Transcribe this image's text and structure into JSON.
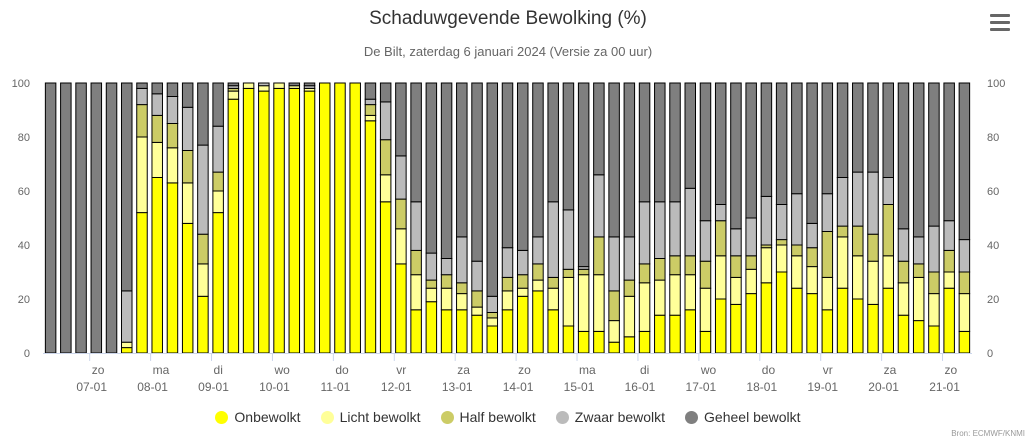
{
  "chart": {
    "title": "Schaduwgevende Bewolking (%)",
    "subtitle": "De Bilt, zaterdag 6 januari 2024 (Versie za 00 uur)",
    "credits": "Bron: ECMWF/KNMI"
  },
  "chart_data": {
    "type": "bar",
    "stacked": true,
    "ylim": [
      0,
      100
    ],
    "yticks": [
      0,
      20,
      40,
      60,
      80,
      100
    ],
    "grid": false,
    "legend_position": "bottom",
    "xaxis_day_labels": [
      {
        "day": "zo",
        "date": "07-01",
        "index": 3
      },
      {
        "day": "ma",
        "date": "08-01",
        "index": 7
      },
      {
        "day": "di",
        "date": "09-01",
        "index": 11
      },
      {
        "day": "wo",
        "date": "10-01",
        "index": 15
      },
      {
        "day": "do",
        "date": "11-01",
        "index": 19
      },
      {
        "day": "vr",
        "date": "12-01",
        "index": 23
      },
      {
        "day": "za",
        "date": "13-01",
        "index": 27
      },
      {
        "day": "zo",
        "date": "14-01",
        "index": 31
      },
      {
        "day": "ma",
        "date": "15-01",
        "index": 35
      },
      {
        "day": "di",
        "date": "16-01",
        "index": 39
      },
      {
        "day": "wo",
        "date": "17-01",
        "index": 43
      },
      {
        "day": "do",
        "date": "18-01",
        "index": 47
      },
      {
        "day": "vr",
        "date": "19-01",
        "index": 51
      },
      {
        "day": "za",
        "date": "20-01",
        "index": 55
      },
      {
        "day": "zo",
        "date": "21-01",
        "index": 59
      }
    ],
    "series": [
      {
        "name": "Onbewolkt",
        "color": "#ffff00",
        "values": [
          0,
          0,
          0,
          0,
          0,
          2,
          52,
          65,
          63,
          48,
          21,
          52,
          94,
          98,
          97,
          98,
          98,
          97,
          100,
          100,
          100,
          86,
          56,
          33,
          16,
          19,
          16,
          16,
          14,
          10,
          16,
          21,
          23,
          16,
          10,
          8,
          8,
          4,
          6,
          8,
          14,
          14,
          16,
          8,
          20,
          18,
          22,
          26,
          30,
          24,
          22,
          16,
          24,
          20,
          18,
          24,
          14,
          12,
          10,
          24,
          8
        ]
      },
      {
        "name": "Licht bewolkt",
        "color": "#ffff99",
        "values": [
          0,
          0,
          0,
          0,
          0,
          2,
          28,
          13,
          13,
          15,
          12,
          8,
          3,
          2,
          2,
          2,
          1,
          1,
          0,
          0,
          0,
          2,
          10,
          13,
          13,
          5,
          8,
          6,
          3,
          3,
          7,
          3,
          4,
          8,
          18,
          21,
          21,
          8,
          15,
          18,
          13,
          15,
          13,
          16,
          16,
          10,
          9,
          13,
          10,
          12,
          10,
          12,
          19,
          16,
          16,
          12,
          12,
          16,
          12,
          6,
          14
        ]
      },
      {
        "name": "Half bewolkt",
        "color": "#cccc66",
        "values": [
          0,
          0,
          0,
          0,
          0,
          0,
          12,
          10,
          9,
          12,
          11,
          7,
          1,
          0,
          0,
          0,
          0,
          0,
          0,
          0,
          0,
          4,
          13,
          11,
          9,
          3,
          5,
          4,
          6,
          2,
          5,
          5,
          6,
          4,
          3,
          2,
          14,
          11,
          6,
          7,
          8,
          7,
          7,
          10,
          13,
          8,
          5,
          1,
          2,
          4,
          7,
          17,
          4,
          11,
          10,
          19,
          8,
          5,
          8,
          8,
          8
        ]
      },
      {
        "name": "Zwaar bewolkt",
        "color": "#bbbbbb",
        "values": [
          0,
          0,
          0,
          0,
          0,
          19,
          6,
          8,
          10,
          16,
          33,
          17,
          1,
          0,
          1,
          0,
          0,
          1,
          0,
          0,
          0,
          2,
          14,
          16,
          18,
          10,
          6,
          17,
          11,
          6,
          11,
          9,
          10,
          28,
          22,
          1,
          23,
          20,
          16,
          23,
          21,
          20,
          25,
          15,
          6,
          10,
          14,
          18,
          13,
          19,
          9,
          14,
          18,
          20,
          23,
          10,
          12,
          10,
          17,
          11,
          12
        ]
      },
      {
        "name": "Geheel bewolkt",
        "color": "#7f7f7f",
        "values": [
          100,
          100,
          100,
          100,
          100,
          77,
          2,
          4,
          5,
          9,
          23,
          16,
          1,
          0,
          0,
          0,
          1,
          1,
          0,
          0,
          0,
          6,
          7,
          27,
          44,
          63,
          65,
          57,
          66,
          79,
          61,
          62,
          57,
          44,
          47,
          68,
          34,
          57,
          57,
          44,
          44,
          44,
          39,
          51,
          45,
          54,
          50,
          42,
          45,
          41,
          52,
          41,
          35,
          33,
          33,
          35,
          54,
          57,
          53,
          51,
          58
        ]
      }
    ]
  }
}
